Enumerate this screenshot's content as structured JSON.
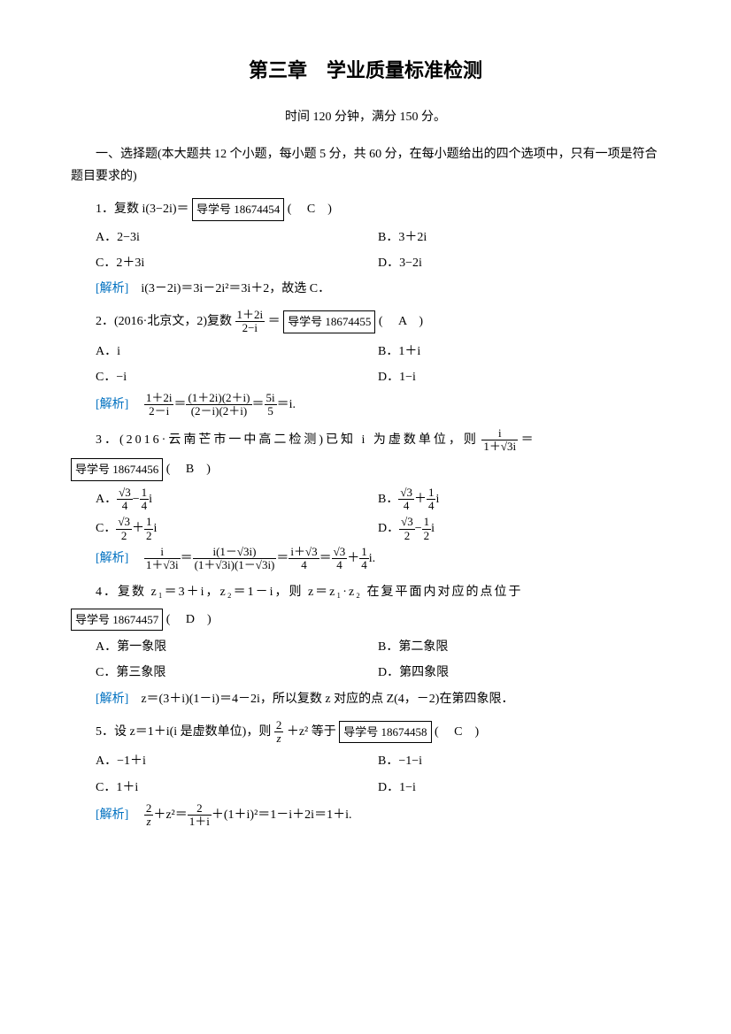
{
  "title": "第三章　学业质量标准检测",
  "subtitle": "时间 120 分钟，满分 150 分。",
  "sectionHeader": {
    "prefix": "一、选择题",
    "text": "(本大题共 12 个小题，每小题 5 分，共 60 分，在每小题给出的四个选项中，只有一项是符合题目要求的)"
  },
  "analysisLabel": "[解析]",
  "tagPrefix": "导学号",
  "q1": {
    "text": "1．复数 i(3−2i)＝",
    "tag": "18674454",
    "answer": "( 　C　)",
    "optA": "A．2−3i",
    "optB": "B．3＋2i",
    "optC": "C．2＋3i",
    "optD": "D．3−2i",
    "analysis": "i(3－2i)＝3i－2i²＝3i＋2，故选 C．"
  },
  "q2": {
    "text": "2．(2016·北京文，2)复数",
    "fracNum": "1＋2i",
    "fracDen": "2−i",
    "eq": "＝",
    "tag": "18674455",
    "answer": "( 　A　)",
    "optA": "A．i",
    "optB": "B．1＋i",
    "optC": "C．−i",
    "optD": "D．1−i",
    "analysis1Num": "1＋2i",
    "analysis1Den": "2－i",
    "analysis2Num": "(1＋2i)(2＋i)",
    "analysis2Den": "(2－i)(2＋i)",
    "analysis3Num": "5i",
    "analysis3Den": "5",
    "analysisEnd": "＝i."
  },
  "q3": {
    "text1": "3．(2016·云南芒市一中高二检测)已知 i 为虚数单位，则",
    "fracNum": "i",
    "fracDen": "1＋√3i",
    "eq": "＝",
    "tag": "18674456",
    "answer": "( 　B　)",
    "optA_a": "√3",
    "optA_b": "4",
    "optA_op": "−",
    "optA_c": "1",
    "optA_d": "4",
    "optB_a": "√3",
    "optB_b": "4",
    "optB_op": "＋",
    "optB_c": "1",
    "optB_d": "4",
    "optC_a": "√3",
    "optC_b": "2",
    "optC_op": "＋",
    "optC_c": "1",
    "optC_d": "2",
    "optD_a": "√3",
    "optD_b": "2",
    "optD_op": "−",
    "optD_c": "1",
    "optD_d": "2",
    "an1Num": "i",
    "an1Den": "1＋√3i",
    "an2Num": "i(1－√3i)",
    "an2Den": "(1＋√3i)(1－√3i)",
    "an3Num": "i＋√3",
    "an3Den": "4",
    "an4a": "√3",
    "an4b": "4",
    "an4c": "1",
    "an4d": "4",
    "anEnd": "i."
  },
  "q4": {
    "text": "4．复数 z₁＝3＋i，z₂＝1－i，则 z＝z₁·z₂ 在复平面内对应的点位于",
    "tag": "18674457",
    "answer": "( 　D　)",
    "optA": "A．第一象限",
    "optB": "B．第二象限",
    "optC": "C．第三象限",
    "optD": "D．第四象限",
    "analysis": "z＝(3＋i)(1－i)＝4－2i，所以复数 z 对应的点 Z(4，－2)在第四象限．"
  },
  "q5": {
    "text1": "5．设 z＝1＋i(i 是虚数单位)，则",
    "fracNum": "2",
    "fracDen": "z",
    "text2": "＋z² 等于",
    "tag": "18674458",
    "answer": "( 　C　)",
    "optA": "A．−1＋i",
    "optB": "B．−1−i",
    "optC": "C．1＋i",
    "optD": "D．1−i",
    "an1Num": "2",
    "an1Den": "z",
    "an2": "＋z²＝",
    "an3Num": "2",
    "an3Den": "1＋i",
    "an4": "＋(1＋i)²＝1－i＋2i＝1＋i."
  },
  "colors": {
    "analysisBlue": "#0070c0",
    "text": "#000000",
    "background": "#ffffff"
  }
}
